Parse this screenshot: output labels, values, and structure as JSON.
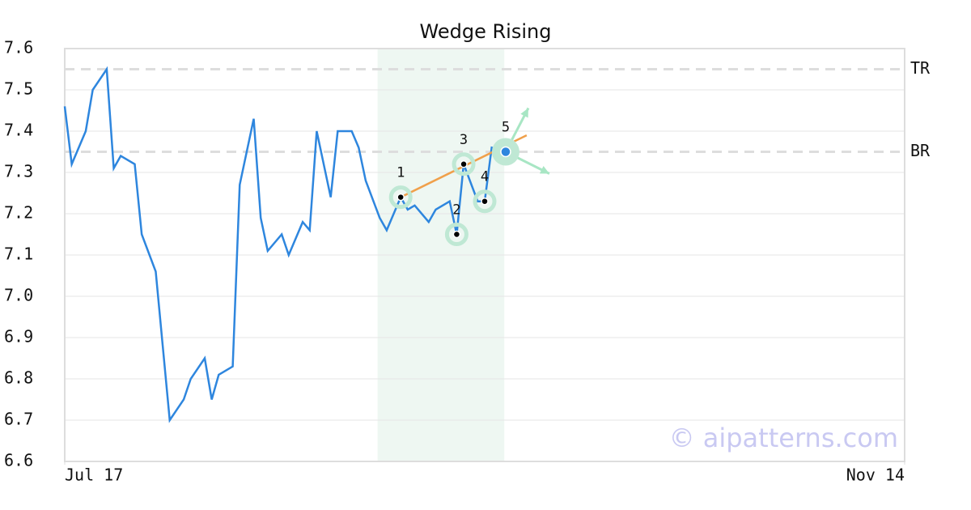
{
  "chart_data": {
    "type": "line",
    "title": "Wedge Rising",
    "x": [
      0,
      1,
      3,
      4,
      6,
      7,
      8,
      10,
      11,
      13,
      14,
      15,
      17,
      18,
      20,
      21,
      22,
      24,
      25,
      27,
      28,
      29,
      31,
      32,
      34,
      35,
      36,
      38,
      39,
      41,
      42,
      43,
      45,
      46,
      48,
      49,
      50,
      52,
      53,
      55,
      56,
      57,
      59,
      60,
      61,
      63
    ],
    "values": [
      7.46,
      7.32,
      7.4,
      7.5,
      7.55,
      7.31,
      7.34,
      7.32,
      7.15,
      7.06,
      6.88,
      6.7,
      6.75,
      6.8,
      6.85,
      6.75,
      6.81,
      6.83,
      7.27,
      7.43,
      7.19,
      7.11,
      7.15,
      7.1,
      7.18,
      7.16,
      7.4,
      7.24,
      7.4,
      7.4,
      7.36,
      7.28,
      7.19,
      7.16,
      7.24,
      7.21,
      7.22,
      7.18,
      7.21,
      7.23,
      7.15,
      7.32,
      7.23,
      7.23,
      7.36,
      7.35
    ],
    "color": "#2e86de",
    "xlim": [
      0,
      120
    ],
    "ylim": [
      6.6,
      7.6
    ],
    "xticks": [
      {
        "value": 0,
        "label": "Jul 17"
      },
      {
        "value": 120,
        "label": "Nov 14"
      }
    ],
    "yticks": [
      6.6,
      6.7,
      6.8,
      6.9,
      {
        "value": 7,
        "label": "7.0"
      },
      7.1,
      7.2,
      7.3,
      7.4,
      7.5,
      7.6
    ],
    "grid": true,
    "highlight": [
      44.7,
      62.8
    ],
    "levels": [
      {
        "label": "TR",
        "value": 7.55
      },
      {
        "label": "BR",
        "value": 7.35
      }
    ],
    "pattern": {
      "points": [
        {
          "label": "1",
          "x": 48,
          "y": 7.24
        },
        {
          "label": "2",
          "x": 56,
          "y": 7.15
        },
        {
          "label": "3",
          "x": 57,
          "y": 7.32
        },
        {
          "label": "4",
          "x": 60,
          "y": 7.23
        },
        {
          "label": "5",
          "x": 63,
          "y": 7.35
        }
      ],
      "trendline": {
        "x": [
          48,
          66
        ],
        "y": [
          7.24,
          7.39
        ],
        "color": "#f0a04b"
      }
    },
    "watermark": "© aipatterns.com"
  }
}
